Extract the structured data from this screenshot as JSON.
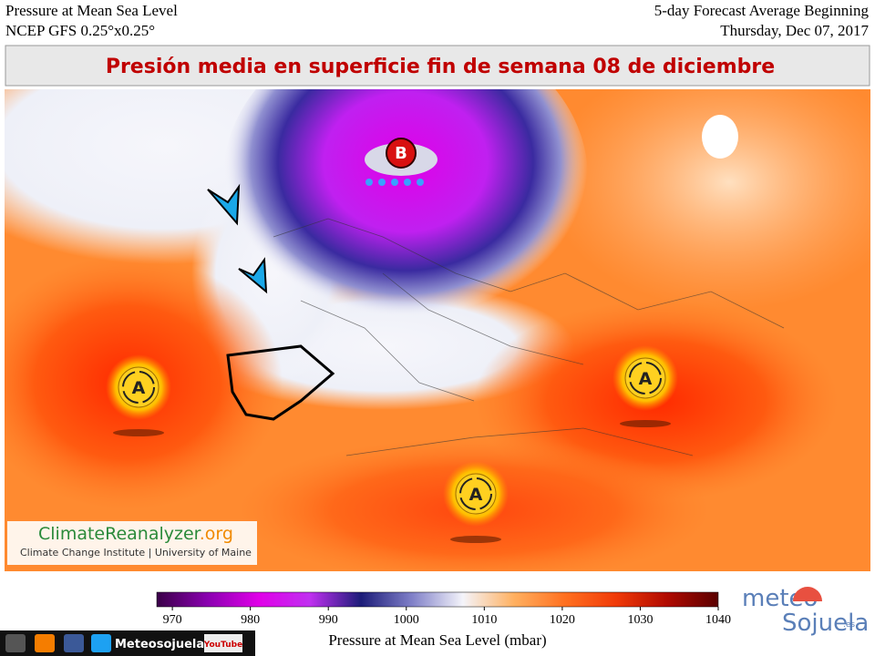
{
  "header": {
    "left": [
      "Pressure at Mean Sea Level",
      "NCEP GFS 0.25°x0.25°"
    ],
    "right": [
      "5-day Forecast Average Beginning",
      "Thursday, Dec 07, 2017"
    ]
  },
  "banner": "Presión media en superficie fin de semana 08 de diciembre",
  "map": {
    "low_label": "B",
    "high_labels": [
      "A",
      "A",
      "A"
    ]
  },
  "credit": {
    "site": "ClimateReanalyzer",
    "tld": ".org",
    "subtitle": "Climate Change Institute | University of Maine"
  },
  "colorbar": {
    "lim": [
      968,
      1040
    ],
    "ticks": [
      970,
      980,
      990,
      1000,
      1010,
      1020,
      1030,
      1040
    ],
    "label": "Pressure at Mean Sea Level (mbar)",
    "colors": [
      "#3a0048",
      "#8a00b0",
      "#e000e8",
      "#c030f0",
      "#1c1c78",
      "#8080c8",
      "#f4f4fa",
      "#ffb060",
      "#ff7020",
      "#f03a08",
      "#b00a00",
      "#5a0000"
    ]
  },
  "footer": {
    "name": "Meteosojuela",
    "youtube": "YouTube"
  },
  "brand": {
    "meteo": "meteo",
    "sojuela": "Sojuela",
    "tld": ".es"
  }
}
